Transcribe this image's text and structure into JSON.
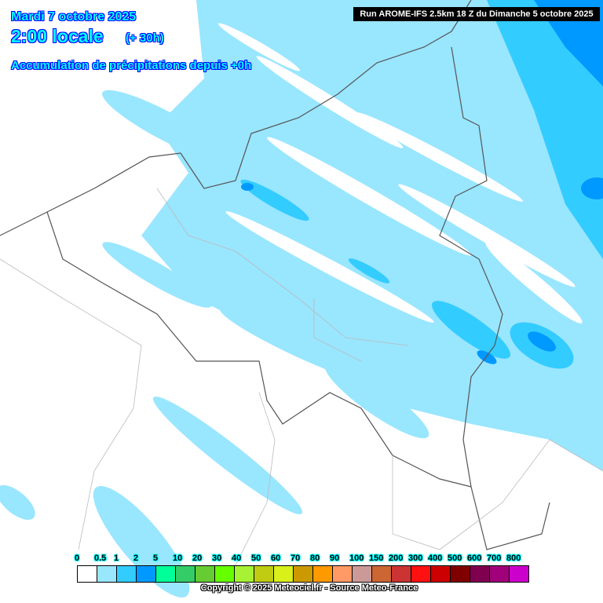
{
  "header": {
    "date": "Mardi 7 octobre 2025",
    "time": "2:00 locale",
    "lead": "(+ 30h)",
    "title": "Accumulation de précipitations depuis +0h",
    "run": "Run AROME-IFS 2.5km 18 Z du Dimanche 5 octobre 2025"
  },
  "legend": {
    "labels": [
      "0",
      "0.5",
      "1",
      "2",
      "5",
      "10",
      "20",
      "30",
      "40",
      "50",
      "60",
      "70",
      "80",
      "90",
      "100",
      "150",
      "200",
      "300",
      "400",
      "500",
      "600",
      "700",
      "800"
    ],
    "colors": [
      "#ffffff",
      "#99e6ff",
      "#33ccff",
      "#0099ff",
      "#00ff99",
      "#33cc66",
      "#66cc33",
      "#66ff00",
      "#a6f233",
      "#bfcc11",
      "#d9f01a",
      "#cc9900",
      "#ff9900",
      "#ff9966",
      "#cc9999",
      "#cc6633",
      "#cc3333",
      "#ff1111",
      "#cc0000",
      "#800000",
      "#800050",
      "#a0007a",
      "#cc00cc"
    ]
  },
  "copyright": "Copyright © 2025 Meteociel.fr - Source Meteo-France"
}
